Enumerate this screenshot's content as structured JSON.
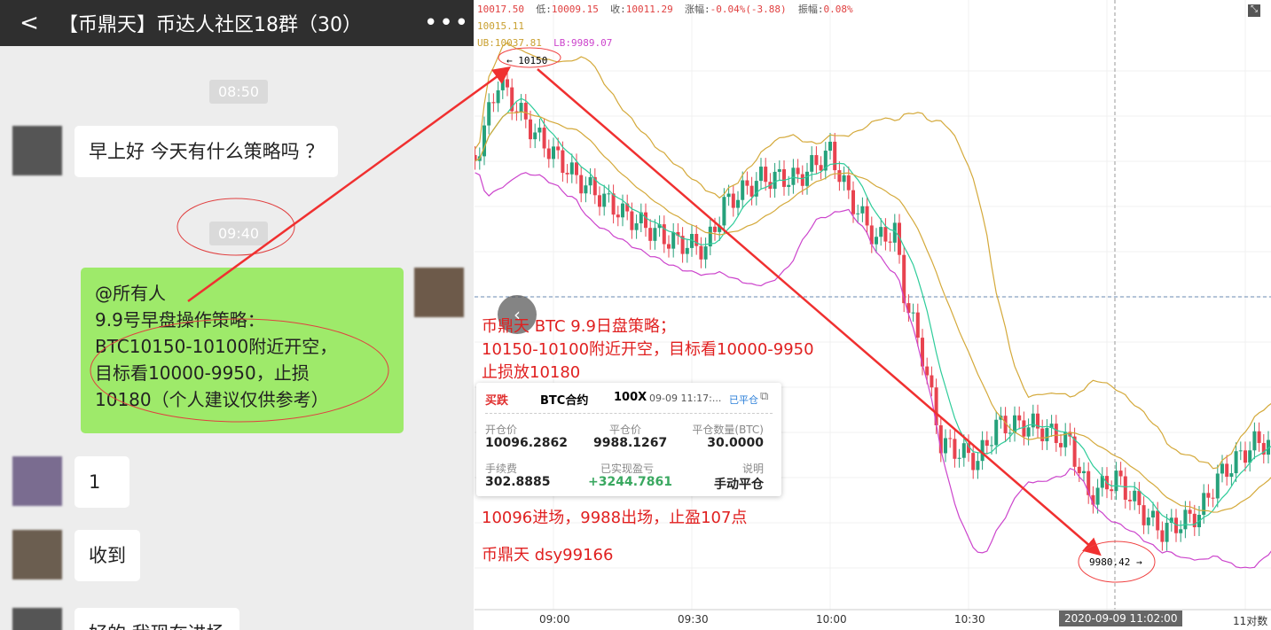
{
  "chat": {
    "title": "【币鼎天】币达人社区18群（30）",
    "back_icon": "chevron-left-icon",
    "more_icon": "more-icon",
    "times": [
      "08:50",
      "09:40"
    ],
    "messages": [
      {
        "from": "other",
        "text": "早上好 今天有什么策略吗 ？"
      },
      {
        "from": "me",
        "lines": [
          "@所有人",
          "9.9号早盘操作策略：",
          "BTC10150-10100附近开空，",
          "目标看10000-9950，止损",
          "10180（个人建议仅供参考）"
        ]
      },
      {
        "from": "other",
        "text": "1"
      },
      {
        "from": "other",
        "text": "收到"
      },
      {
        "from": "other",
        "text": "好的 我现在进场"
      }
    ]
  },
  "chart": {
    "info": {
      "high_value": "10017.50",
      "low_label": "低:",
      "low": "10009.15",
      "close_label": "收:",
      "close": "10011.29",
      "change_label": "涨幅:",
      "change": "-0.04%(-3.88)",
      "amp_label": "振幅:",
      "amp": "0.08%",
      "mid": "10015.11",
      "ub": "UB:10037.81",
      "lb": "LB:9989.07"
    },
    "high_marker": "10150",
    "low_marker": "9980.42",
    "time_labels": [
      "09:00",
      "09:30",
      "10:00",
      "10:30"
    ],
    "crosshair_time": "2020-09-09 11:02:00",
    "right_label": "11对数",
    "colors": {
      "up": "#26a17b",
      "down": "#e8434f",
      "mid": "#2ecc9a",
      "band": "#d4a93a",
      "lower": "#cc44cc",
      "annotation": "#e02020"
    },
    "series_keypoints": [
      [
        "08:43",
        10115
      ],
      [
        "08:48",
        10142
      ],
      [
        "08:56",
        10124
      ],
      [
        "09:05",
        10109
      ],
      [
        "09:15",
        10097
      ],
      [
        "09:25",
        10088
      ],
      [
        "09:33",
        10085
      ],
      [
        "09:37",
        10100
      ],
      [
        "09:45",
        10109
      ],
      [
        "09:53",
        10109
      ],
      [
        "10:00",
        10118
      ],
      [
        "10:04",
        10103
      ],
      [
        "10:10",
        10088
      ],
      [
        "10:14",
        10091
      ],
      [
        "10:16",
        10070
      ],
      [
        "10:20",
        10049
      ],
      [
        "10:24",
        10019
      ],
      [
        "10:32",
        10013
      ],
      [
        "10:36",
        10025
      ],
      [
        "10:44",
        10025
      ],
      [
        "10:52",
        10019
      ],
      [
        "10:56",
        10001
      ],
      [
        "11:02",
        10007
      ],
      [
        "11:08",
        9995
      ],
      [
        "11:12",
        9989
      ],
      [
        "11:20",
        9995
      ],
      [
        "11:24",
        10007
      ],
      [
        "11:32",
        10019
      ],
      [
        "11:38",
        10019
      ]
    ],
    "annotation": [
      "币鼎天  BTC  9.9日盘策略；",
      "10150-10100附近开空，目标看10000-9950",
      "止损放10180"
    ],
    "result": "10096进场，9988出场，止盈107点",
    "signature": "币鼎天 dsy99166"
  },
  "card": {
    "side": "买跌",
    "contract": "BTC合约",
    "leverage": "100X",
    "time": "09-09 11:17:...",
    "status": "已平仓",
    "fields": [
      {
        "label": "开仓价",
        "value": "10096.2862"
      },
      {
        "label": "平仓价",
        "value": "9988.1267"
      },
      {
        "label": "平仓数量(BTC)",
        "value": "30.0000"
      },
      {
        "label": "手续费",
        "value": "302.8885"
      },
      {
        "label": "已实现盈亏",
        "value": "+3244.7861"
      },
      {
        "label": "说明",
        "value": "手动平仓"
      }
    ]
  }
}
